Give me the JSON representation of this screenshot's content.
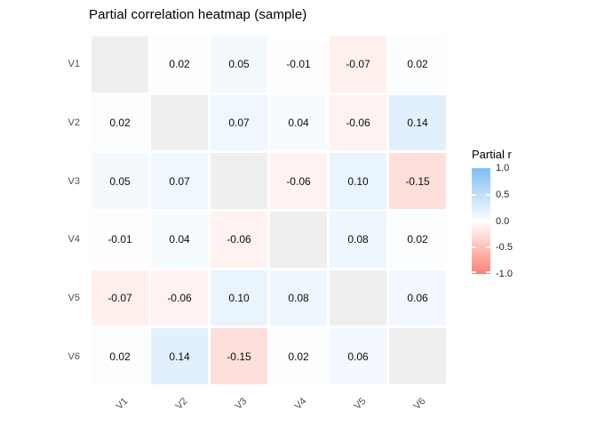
{
  "title": "Partial correlation heatmap (sample)",
  "chart_data": {
    "type": "heatmap",
    "title": "Partial correlation heatmap (sample)",
    "rows": [
      "V1",
      "V2",
      "V3",
      "V4",
      "V5",
      "V6"
    ],
    "cols": [
      "V1",
      "V2",
      "V3",
      "V4",
      "V5",
      "V6"
    ],
    "matrix": [
      [
        null,
        0.02,
        0.05,
        -0.01,
        -0.07,
        0.02
      ],
      [
        0.02,
        null,
        0.07,
        0.04,
        -0.06,
        0.14
      ],
      [
        0.05,
        0.07,
        null,
        -0.06,
        0.1,
        -0.15
      ],
      [
        -0.01,
        0.04,
        -0.06,
        null,
        0.08,
        0.02
      ],
      [
        -0.07,
        -0.06,
        0.1,
        0.08,
        null,
        0.06
      ],
      [
        0.02,
        0.14,
        -0.15,
        0.02,
        0.06,
        null
      ]
    ],
    "value_decimals": 2,
    "colors": {
      "high": "#7FBEF4",
      "mid": "#FFFFFF",
      "low": "#FC8074",
      "na_diagonal": "#EFEFEF",
      "axis_text": "#4D4D4D",
      "cell_text": "#0D0D0D"
    },
    "legend": {
      "title": "Partial r",
      "tick_labels": [
        "1.0",
        "0.5",
        "0.0",
        "-0.5",
        "-1.0"
      ],
      "tick_values": [
        1.0,
        0.5,
        0.0,
        -0.5,
        -1.0
      ],
      "range": [
        -1.0,
        1.0
      ],
      "position": "right"
    },
    "grid": "off",
    "background": "#FFFFFF"
  }
}
